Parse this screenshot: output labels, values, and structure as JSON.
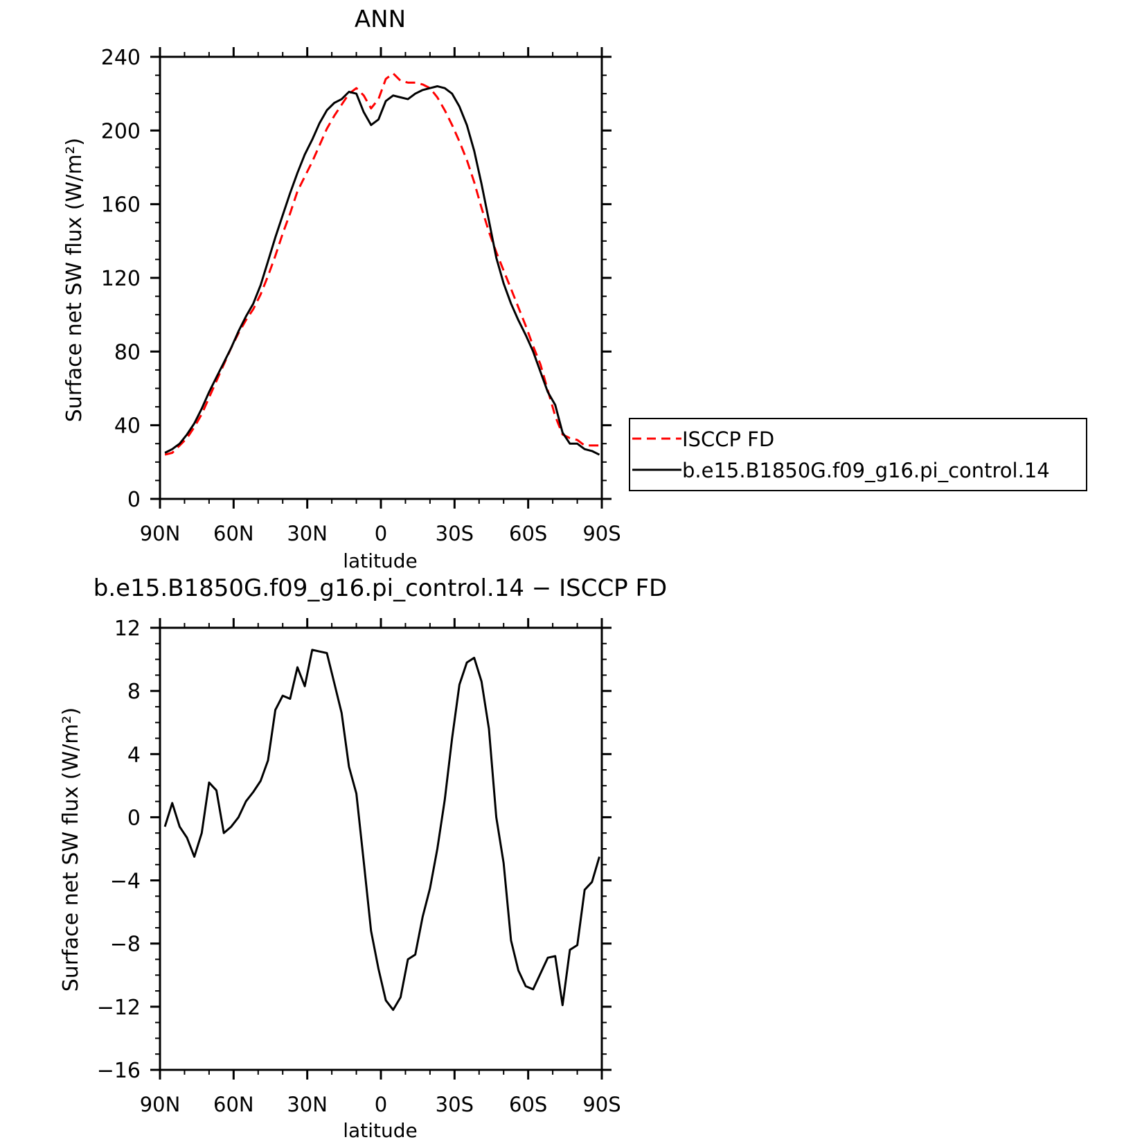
{
  "chart_data": [
    {
      "type": "line",
      "title": "ANN",
      "xlabel": "latitude",
      "ylabel": "Surface net SW flux (W/m²)",
      "ylim": [
        0,
        240
      ],
      "xlim": [
        90,
        -90
      ],
      "x_ticks": [
        90,
        60,
        30,
        0,
        -30,
        -60,
        -90
      ],
      "x_tick_labels": [
        "90N",
        "60N",
        "30N",
        "0",
        "30S",
        "60S",
        "90S"
      ],
      "y_ticks": [
        0,
        40,
        80,
        120,
        160,
        200,
        240
      ],
      "y_tick_labels": [
        "0",
        "40",
        "80",
        "120",
        "160",
        "200",
        "240"
      ],
      "grid": false,
      "legend": {
        "placement": "right-outside",
        "entries": [
          "ISCCP FD",
          "b.e15.B1850G.f09_g16.pi_control.14"
        ]
      },
      "series": [
        {
          "name": "ISCCP FD",
          "color": "#ff0000",
          "dash": "dashed",
          "x": [
            88,
            85,
            82,
            79,
            76,
            73,
            70,
            67,
            64,
            61,
            58,
            55,
            52,
            49,
            46,
            43,
            40,
            37,
            34,
            31,
            28,
            25,
            22,
            19,
            16,
            13,
            10,
            7,
            4,
            1,
            -2,
            -5,
            -8,
            -11,
            -14,
            -17,
            -20,
            -23,
            -26,
            -29,
            -32,
            -35,
            -38,
            -41,
            -44,
            -47,
            -50,
            -53,
            -56,
            -59,
            -62,
            -65,
            -68,
            -71,
            -74,
            -77,
            -80,
            -83,
            -86,
            -89
          ],
          "y": [
            24,
            25,
            29,
            33,
            39,
            46,
            55,
            64,
            73,
            82,
            90,
            97,
            103,
            111,
            121,
            132,
            144,
            155,
            167,
            175,
            183,
            192,
            201,
            208,
            214,
            220,
            223,
            219,
            212,
            217,
            228,
            231,
            227,
            226,
            226,
            225,
            223,
            218,
            211,
            203,
            194,
            184,
            172,
            158,
            145,
            134,
            124,
            114,
            104,
            94,
            83,
            73,
            59,
            45,
            35,
            33,
            32,
            29,
            29,
            29
          ]
        },
        {
          "name": "b.e15.B1850G.f09_g16.pi_control.14",
          "color": "#000000",
          "dash": "solid",
          "x": [
            88,
            85,
            82,
            79,
            76,
            73,
            70,
            67,
            64,
            61,
            58,
            55,
            52,
            49,
            46,
            43,
            40,
            37,
            34,
            31,
            28,
            25,
            22,
            19,
            16,
            13,
            10,
            7,
            4,
            1,
            -2,
            -5,
            -8,
            -11,
            -14,
            -17,
            -20,
            -23,
            -26,
            -29,
            -32,
            -35,
            -38,
            -41,
            -44,
            -47,
            -50,
            -53,
            -56,
            -59,
            -62,
            -65,
            -68,
            -71,
            -74,
            -77,
            -80,
            -83,
            -86,
            -89
          ],
          "y": [
            25,
            27,
            30,
            35,
            41,
            49,
            58,
            66,
            74,
            82,
            91,
            99,
            106,
            116,
            129,
            142,
            154,
            166,
            177,
            187,
            195,
            204,
            211,
            215,
            217,
            221,
            220,
            210,
            203,
            206,
            216,
            219,
            218,
            217,
            220,
            222,
            223,
            224,
            223,
            220,
            213,
            203,
            189,
            171,
            151,
            131,
            117,
            106,
            97,
            89,
            80,
            69,
            58,
            51,
            36,
            30,
            30,
            27,
            26,
            24
          ]
        }
      ]
    },
    {
      "type": "line",
      "title": "b.e15.B1850G.f09_g16.pi_control.14 − ISCCP FD",
      "xlabel": "latitude",
      "ylabel": "Surface net SW flux (W/m²)",
      "ylim": [
        -16,
        12
      ],
      "xlim": [
        90,
        -90
      ],
      "x_ticks": [
        90,
        60,
        30,
        0,
        -30,
        -60,
        -90
      ],
      "x_tick_labels": [
        "90N",
        "60N",
        "30N",
        "0",
        "30S",
        "60S",
        "90S"
      ],
      "y_ticks": [
        -16,
        -12,
        -8,
        -4,
        0,
        4,
        8,
        12
      ],
      "y_tick_labels": [
        "−16",
        "−12",
        "−8",
        "−4",
        "0",
        "4",
        "8",
        "12"
      ],
      "grid": false,
      "series": [
        {
          "color": "#000000",
          "dash": "solid",
          "x": [
            88,
            85,
            82,
            79,
            76,
            73,
            70,
            67,
            64,
            61,
            58,
            55,
            52,
            49,
            46,
            43,
            40,
            37,
            34,
            31,
            28,
            25,
            22,
            19,
            16,
            13,
            10,
            7,
            4,
            1,
            -2,
            -5,
            -8,
            -11,
            -14,
            -17,
            -20,
            -23,
            -26,
            -29,
            -32,
            -35,
            -38,
            -41,
            -44,
            -47,
            -50,
            -53,
            -56,
            -59,
            -62,
            -65,
            -68,
            -71,
            -74,
            -77,
            -80,
            -83,
            -86,
            -89
          ],
          "y": [
            -0.6,
            0.9,
            -0.6,
            -1.3,
            -2.5,
            -1.0,
            2.2,
            1.7,
            -1.0,
            -0.6,
            0.0,
            1.0,
            1.6,
            2.3,
            3.6,
            6.8,
            7.7,
            7.5,
            9.5,
            8.3,
            10.6,
            10.5,
            10.4,
            8.5,
            6.6,
            3.2,
            1.5,
            -2.8,
            -7.2,
            -9.6,
            -11.6,
            -12.2,
            -11.4,
            -9.0,
            -8.7,
            -6.3,
            -4.5,
            -2.0,
            1.1,
            5.0,
            8.4,
            9.8,
            10.1,
            8.6,
            5.6,
            0.0,
            -2.9,
            -7.8,
            -9.7,
            -10.7,
            -10.9,
            -9.9,
            -8.9,
            -8.8,
            -11.9,
            -8.4,
            -8.1,
            -4.6,
            -4.1,
            -2.5
          ]
        }
      ]
    }
  ]
}
